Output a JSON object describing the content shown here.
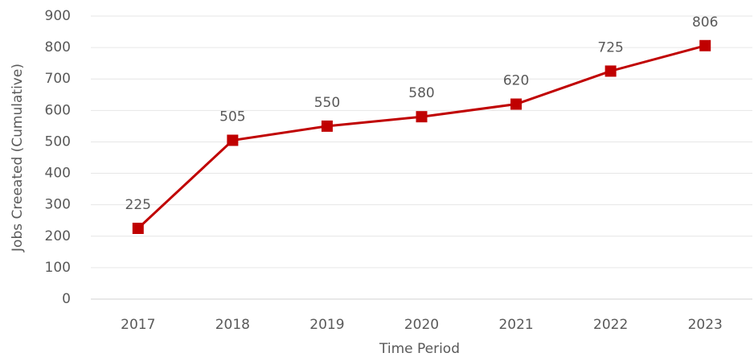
{
  "chart_data": {
    "type": "line",
    "x_label": "Time Period",
    "y_label": "Jobs Creeated (Cumulative)",
    "categories": [
      "2017",
      "2018",
      "2019",
      "2020",
      "2021",
      "2022",
      "2023"
    ],
    "series": [
      {
        "name": "Jobs Created",
        "color": "#c00000",
        "values": [
          225,
          505,
          550,
          580,
          620,
          725,
          806
        ]
      }
    ],
    "ylim": [
      0,
      900
    ],
    "yticks": [
      0,
      100,
      200,
      300,
      400,
      500,
      600,
      700,
      800,
      900
    ],
    "grid": true,
    "legend": false,
    "data_labels": true
  }
}
